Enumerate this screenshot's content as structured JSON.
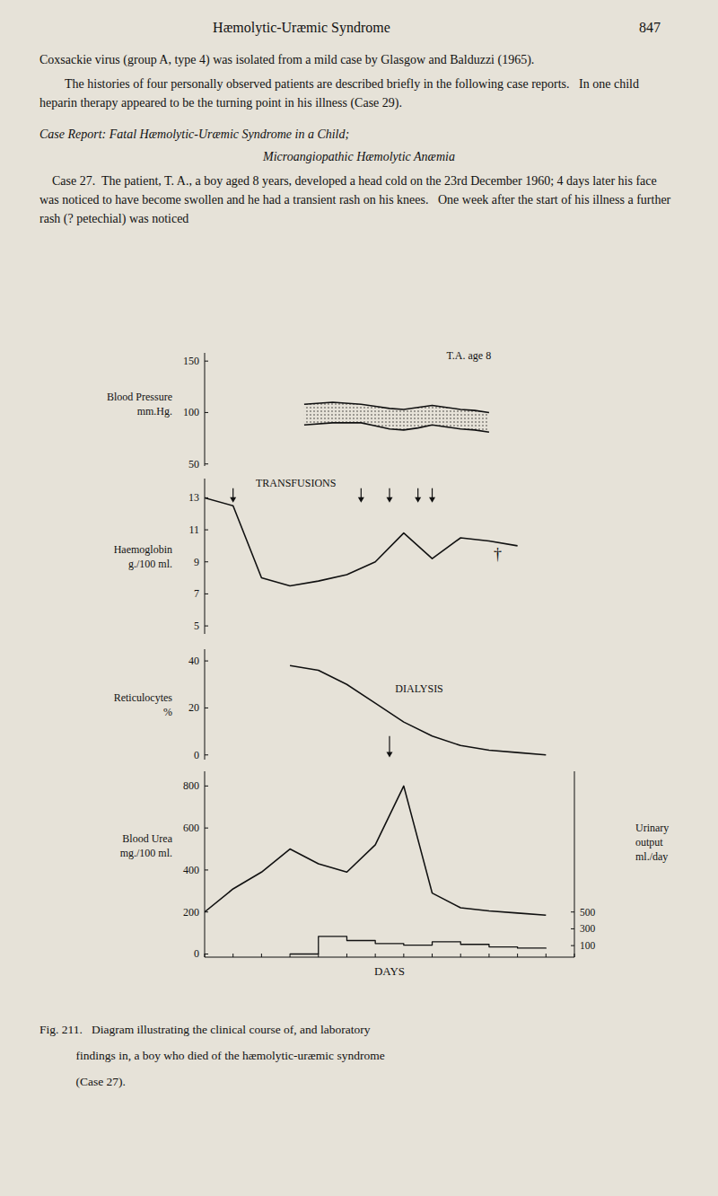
{
  "page": {
    "title": "Hæmolytic-Uræmic Syndrome",
    "number": "847",
    "paragraphs": [
      "Coxsackie virus (group A, type 4) was isolated from a mild case by Glasgow and Balduzzi (1965).",
      "The histories of four personally observed patients are described briefly in the following case reports.   In one child heparin therapy appeared to be the turning point in his illness (Case 29)."
    ],
    "case_title": [
      "Case Report: Fatal Hæmolytic-Uræmic Syndrome in a Child;",
      "Microangiopathic Hæmolytic Anæmia"
    ],
    "case_text": "    Case 27.  The patient, T. A., a boy aged 8 years, developed a head cold on the 23rd December 1960; 4 days later his face was noticed to have become swollen and he had a transient rash on his knees.   One week after the start of his illness a further rash (? petechial) was noticed",
    "caption": [
      "Fig. 211.   Diagram illustrating the clinical course of, and laboratory",
      "            findings in, a boy who died of the hæmolytic-uræmic syndrome",
      "            (Case 27)."
    ],
    "bg_color": "#e6e2d8",
    "color": "#111111"
  },
  "chart_data": [
    {
      "type": "range_area",
      "color": "#111111",
      "x": [
        3.5,
        4.5,
        5.5,
        6.0,
        6.5,
        7.0,
        7.5,
        8.0,
        8.5,
        9.0,
        9.5,
        10.0
      ],
      "series": [
        {
          "values": [
            108,
            110,
            108,
            106,
            104,
            103,
            105,
            107,
            105,
            103,
            102,
            100
          ]
        },
        {
          "values": [
            88,
            90,
            90,
            87,
            84,
            83,
            85,
            88,
            86,
            84,
            83,
            81
          ]
        }
      ],
      "ylabel": "Blood Pressure\nmm.Hg.",
      "xlim": [
        0,
        13
      ],
      "ylim": [
        48,
        158
      ],
      "yticks": [
        50,
        100,
        150
      ],
      "tick_labels": "y",
      "grid": false,
      "annotations": [
        {
          "text": "T.A. age 8",
          "x": 8.5,
          "y": 155
        }
      ]
    },
    {
      "type": "line",
      "color": "#111111",
      "x": [
        0,
        1,
        2,
        3,
        4,
        5,
        6,
        7,
        8,
        9,
        10,
        11
      ],
      "values": [
        13.0,
        12.5,
        8.0,
        7.5,
        7.8,
        8.2,
        9.0,
        10.8,
        9.2,
        10.5,
        10.3,
        10.0
      ],
      "ylabel": "Haemoglobin\ng./100 ml.",
      "xlim": [
        0,
        13
      ],
      "ylim": [
        4.5,
        14.2
      ],
      "yticks": [
        5,
        7,
        9,
        11,
        13
      ],
      "tick_labels": "y",
      "grid": false,
      "annotations": [
        {
          "text": "TRANSFUSIONS",
          "x": 1.8,
          "y": 13.9
        },
        {
          "text": "†",
          "x": 10.3,
          "y": 9.5
        }
      ],
      "arrows": {
        "x": [
          1.0,
          5.5,
          6.5,
          7.5,
          8.0
        ],
        "from": 13.6,
        "to": 12.7
      }
    },
    {
      "type": "line",
      "color": "#111111",
      "x": [
        3,
        4,
        5,
        6,
        7,
        8,
        9,
        10,
        11,
        12
      ],
      "values": [
        38,
        36,
        30,
        22,
        14,
        8,
        4,
        2,
        1,
        0
      ],
      "ylabel": "Reticulocytes\n%",
      "xlim": [
        0,
        13
      ],
      "ylim": [
        -2,
        45
      ],
      "yticks": [
        0,
        20,
        40
      ],
      "tick_labels": "y",
      "grid": false,
      "annotations": [
        {
          "text": "DIALYSIS",
          "x": 6.7,
          "y": 28
        }
      ],
      "arrows": {
        "x": [
          6.5
        ],
        "from": 8,
        "to": -1
      }
    },
    {
      "type": "line",
      "color": "#111111",
      "series": [
        {
          "x": [
            0,
            1,
            2,
            3,
            4,
            5,
            6,
            7,
            8,
            9,
            10,
            11,
            12
          ],
          "values": [
            200,
            310,
            390,
            500,
            430,
            390,
            520,
            800,
            290,
            220,
            205,
            195,
            185
          ]
        },
        {
          "x": [
            3,
            4,
            4,
            5,
            5,
            6,
            6,
            7,
            7,
            8,
            8,
            9,
            9,
            10,
            10,
            11,
            11,
            12,
            12
          ],
          "values": [
            0,
            0,
            210,
            210,
            160,
            160,
            125,
            125,
            105,
            105,
            145,
            145,
            115,
            115,
            85,
            85,
            70,
            70,
            65
          ],
          "axis": "y2"
        }
      ],
      "xlabel": "DAYS",
      "ylabel": "Blood Urea\nmg./100 ml.",
      "y2label": "Urinary\noutput\nml./day",
      "xlim": [
        0,
        13
      ],
      "xticks": [
        0,
        1,
        2,
        3,
        4,
        5,
        6,
        7,
        8,
        9,
        10,
        11,
        12,
        13
      ],
      "ylim": [
        -15,
        870
      ],
      "yticks": [
        0,
        200,
        400,
        600,
        800
      ],
      "y2lim": [
        -37.5,
        2175
      ],
      "y2ticks": [
        100,
        300,
        500
      ],
      "tick_labels": "y",
      "grid": false
    }
  ]
}
